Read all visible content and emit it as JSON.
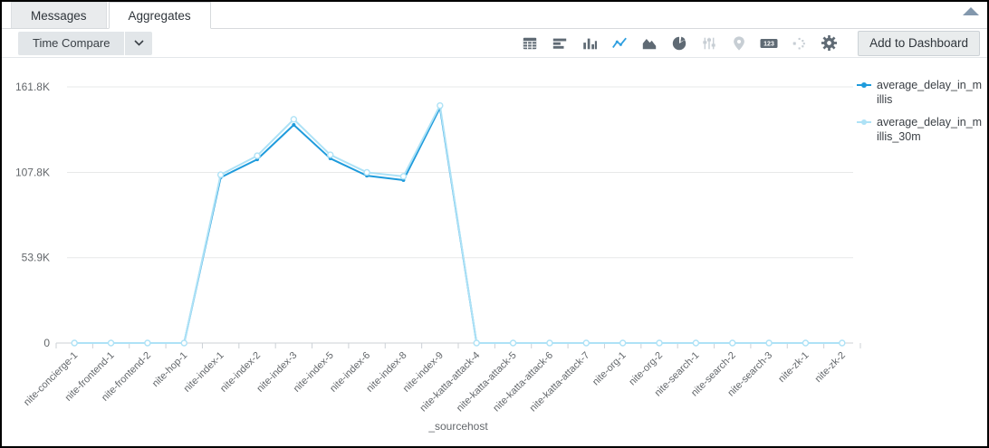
{
  "tabs": {
    "messages": "Messages",
    "aggregates": "Aggregates"
  },
  "toolbar": {
    "time_compare_label": "Time Compare",
    "add_to_dashboard_label": "Add to Dashboard",
    "badge_123_text": "123",
    "icons": [
      "table-icon",
      "horizontal-bar-chart-icon",
      "column-chart-icon",
      "line-chart-icon",
      "area-chart-icon",
      "pie-chart-icon",
      "sliders-icon",
      "map-pin-icon",
      "numeric-123-icon",
      "branch-icon",
      "gear-icon"
    ],
    "active_icon": "line-chart-icon"
  },
  "colors": {
    "icon_enabled": "#5f6a74",
    "icon_disabled": "#c7ced4",
    "icon_active": "#2f9fe0",
    "collapse_arrow": "#8398ad"
  },
  "chart_data": {
    "type": "line",
    "title": "",
    "xlabel": "_sourcehost",
    "ylabel": "",
    "grid": true,
    "legend_position": "right",
    "ylim": [
      0,
      172000
    ],
    "y_ticks": [
      {
        "value": 0,
        "label": "0"
      },
      {
        "value": 53900,
        "label": "53.9K"
      },
      {
        "value": 107800,
        "label": "107.8K"
      },
      {
        "value": 161800,
        "label": "161.8K"
      }
    ],
    "categories": [
      "nite-concierge-1",
      "nite-frontend-1",
      "nite-frontend-2",
      "nite-hop-1",
      "nite-index-1",
      "nite-index-2",
      "nite-index-3",
      "nite-index-5",
      "nite-index-6",
      "nite-index-8",
      "nite-index-9",
      "nite-katta-attack-4",
      "nite-katta-attack-5",
      "nite-katta-attack-6",
      "nite-katta-attack-7",
      "nite-org-1",
      "nite-org-2",
      "nite-search-1",
      "nite-search-2",
      "nite-search-3",
      "nite-zk-1",
      "nite-zk-2"
    ],
    "series": [
      {
        "name": "average_delay_in_millis",
        "color": "#1e9bdc",
        "marker": "dot",
        "values": [
          0,
          0,
          0,
          0,
          104600,
          116000,
          137800,
          116600,
          105700,
          102900,
          148600,
          0,
          0,
          0,
          0,
          0,
          0,
          0,
          0,
          0,
          0,
          0
        ]
      },
      {
        "name": "average_delay_in_millis_30m",
        "color": "#aee2f6",
        "marker": "circle",
        "values": [
          0,
          0,
          0,
          0,
          106300,
          118300,
          141300,
          118900,
          107800,
          105300,
          150000,
          0,
          0,
          0,
          0,
          0,
          0,
          0,
          0,
          0,
          0,
          0
        ]
      }
    ]
  }
}
